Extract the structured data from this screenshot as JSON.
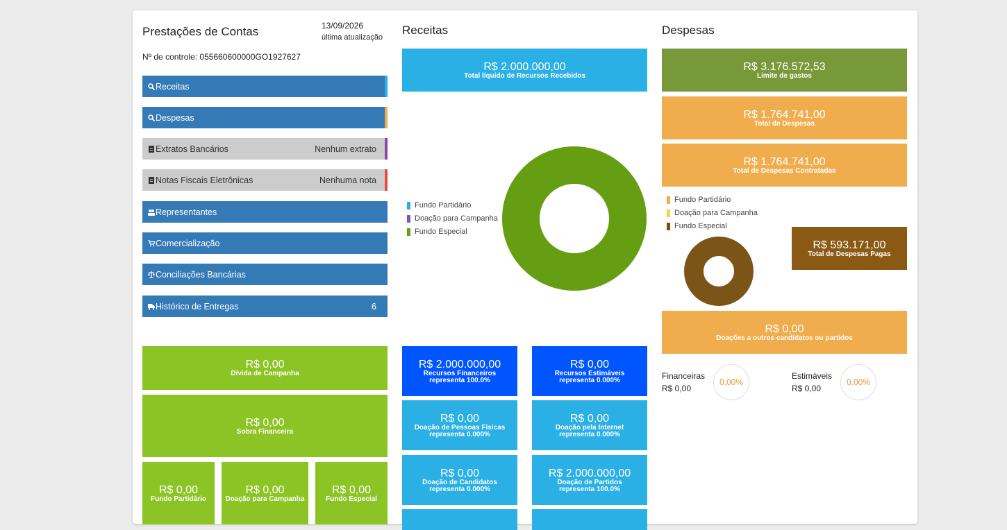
{
  "left": {
    "title": "Prestações de Contas",
    "date": "13/09/2026",
    "date_caption": "última atualização",
    "control": "Nº de controle: 055660600000GO1927627",
    "nav": [
      {
        "label": "Receitas",
        "value": ""
      },
      {
        "label": "Despesas",
        "value": ""
      },
      {
        "label": "Extratos Bancários",
        "value": "Nenhum extrato"
      },
      {
        "label": "Notas Fiscais Eletrônicas",
        "value": "Nenhuma nota"
      },
      {
        "label": "Representantes",
        "value": ""
      },
      {
        "label": "Comercialização",
        "value": ""
      },
      {
        "label": "Conciliações Bancárias",
        "value": ""
      },
      {
        "label": "Histórico de Entregas",
        "value": "6"
      }
    ],
    "divida": {
      "value": "R$ 0,00",
      "label": "Dívida de Campanha"
    },
    "sobra": {
      "value": "R$ 0,00",
      "label": "Sobra Financeira"
    },
    "funds": [
      {
        "value": "R$ 0,00",
        "label": "Fundo Partidário"
      },
      {
        "value": "R$ 0,00",
        "label": "Doação para Campanha"
      },
      {
        "value": "R$ 0,00",
        "label": "Fundo Especial"
      }
    ]
  },
  "receitas": {
    "title": "Receitas",
    "total": {
      "value": "R$ 2.000.000,00",
      "label": "Total líquido de Recursos Recebidos"
    },
    "legend": [
      {
        "label": "Fundo Partidário",
        "color": "#2ab0e4"
      },
      {
        "label": "Doação para Campanha",
        "color": "#7e57c2"
      },
      {
        "label": "Fundo Especial",
        "color": "#659e13"
      }
    ],
    "tiles": [
      {
        "value": "R$ 2.000.000,00",
        "l1": "Recursos Financeiros",
        "l2": "representa 100.0%"
      },
      {
        "value": "R$ 0,00",
        "l1": "Recursos Estimáveis",
        "l2": "representa 0.000%"
      },
      {
        "value": "R$ 0,00",
        "l1": "Doação de Pessoas Físicas",
        "l2": "representa 0.000%"
      },
      {
        "value": "R$ 0,00",
        "l1": "Doação pela Internet",
        "l2": "representa 0.000%"
      },
      {
        "value": "R$ 0,00",
        "l1": "Doação de Candidatos",
        "l2": "representa 0.000%"
      },
      {
        "value": "R$ 2.000.000,00",
        "l1": "Doação de Partidos",
        "l2": "representa 100.0%"
      }
    ]
  },
  "despesas": {
    "title": "Despesas",
    "limite": {
      "value": "R$ 3.176.572,53",
      "label": "Limite de gastos"
    },
    "total": {
      "value": "R$ 1.764.741,00",
      "label": "Total de Despesas"
    },
    "contratadas": {
      "value": "R$ 1.764.741,00",
      "label": "Total de Despesas Contratadas"
    },
    "legend": [
      {
        "label": "Fundo Partidário",
        "color": "#f0ad4e"
      },
      {
        "label": "Doação para Campanha",
        "color": "#f5d547"
      },
      {
        "label": "Fundo Especial",
        "color": "#7b4f12"
      }
    ],
    "pagas": {
      "value": "R$ 593.171,00",
      "label": "Total de Despesas Pagas"
    },
    "doacoes": {
      "value": "R$ 0,00",
      "label": "Doações a outros candidatos ou partidos"
    },
    "financeiras": {
      "label": "Financeiras",
      "value": "R$ 0,00",
      "pct": "0.00%"
    },
    "estimaveis": {
      "label": "Estimáveis",
      "value": "R$ 0,00",
      "pct": "0.00%"
    }
  }
}
